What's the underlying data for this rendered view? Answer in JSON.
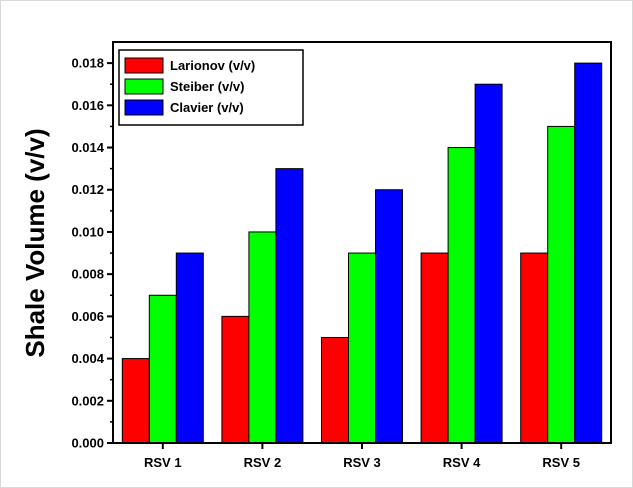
{
  "chart_data": {
    "type": "bar",
    "title": "",
    "xlabel": "",
    "ylabel": "Shale Volume (v/v)",
    "ylim": [
      0,
      0.019
    ],
    "yticks": [
      "0.000",
      "0.002",
      "0.004",
      "0.006",
      "0.008",
      "0.010",
      "0.012",
      "0.014",
      "0.016",
      "0.018"
    ],
    "categories": [
      "RSV 1",
      "RSV 2",
      "RSV 3",
      "RSV 4",
      "RSV 5"
    ],
    "series": [
      {
        "name": "Larionov (v/v)",
        "color": "#ff0000",
        "values": [
          0.004,
          0.006,
          0.005,
          0.009,
          0.009
        ]
      },
      {
        "name": "Steiber (v/v)",
        "color": "#00ff00",
        "values": [
          0.007,
          0.01,
          0.009,
          0.014,
          0.015
        ]
      },
      {
        "name": "Clavier (v/v)",
        "color": "#0000ff",
        "values": [
          0.009,
          0.013,
          0.012,
          0.017,
          0.018
        ]
      }
    ],
    "legend_position": "top-left",
    "grid": false
  }
}
